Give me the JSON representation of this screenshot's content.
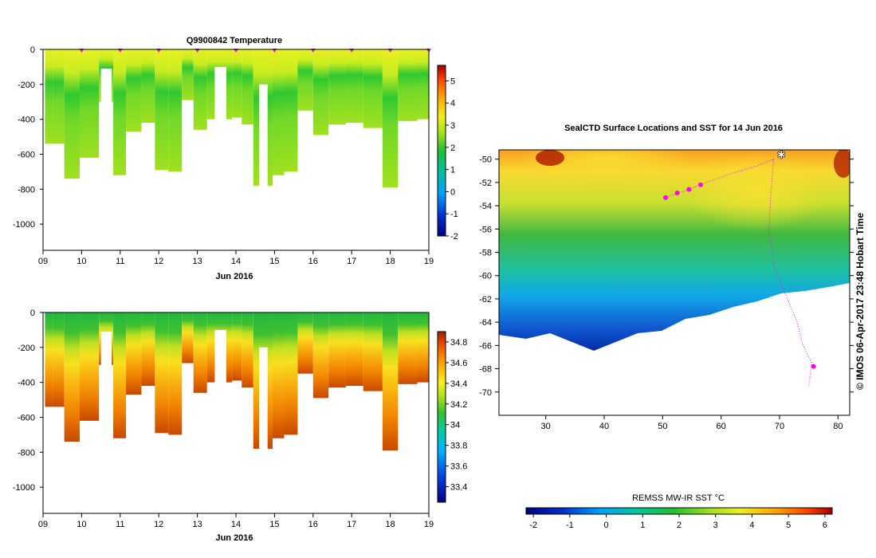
{
  "chart_data": [
    {
      "type": "heatmap",
      "title": "Q9900842  Temperature",
      "xlabel": "Jun 2016",
      "ylabel": "",
      "xlim": [
        9,
        19
      ],
      "ylim": [
        -1150,
        0
      ],
      "xticks": [
        "09",
        "10",
        "11",
        "12",
        "13",
        "14",
        "15",
        "16",
        "17",
        "18",
        "19"
      ],
      "yticks": [
        "0",
        "-200",
        "-400",
        "-600",
        "-800",
        "-1000"
      ],
      "colorbar": {
        "ticks": [
          "5",
          "4",
          "3",
          "2",
          "1",
          "0",
          "-1",
          "-2"
        ],
        "min": -2,
        "max": 5.7
      },
      "profile_markers_day": [
        10,
        11,
        12,
        13,
        14,
        15,
        16,
        17,
        18,
        19
      ],
      "profiles": [
        {
          "day": 9.25,
          "max_depth": 540,
          "surface": 2.9,
          "deep": 2.5
        },
        {
          "day": 9.55,
          "max_depth": 740,
          "surface": 3.1,
          "deep": 2.2
        },
        {
          "day": 9.95,
          "max_depth": 620,
          "surface": 2.9,
          "deep": 2.1
        },
        {
          "day": 10.45,
          "max_depth": 300,
          "surface": 3.0,
          "deep": 2.3
        },
        {
          "day": 10.82,
          "max_depth": 720,
          "surface": 2.9,
          "deep": 2.4
        },
        {
          "day": 11.15,
          "max_depth": 470,
          "surface": 2.8,
          "deep": 2.1
        },
        {
          "day": 11.55,
          "max_depth": 420,
          "surface": 2.9,
          "deep": 2.2
        },
        {
          "day": 11.9,
          "max_depth": 690,
          "surface": 3.0,
          "deep": 2.4
        },
        {
          "day": 12.25,
          "max_depth": 700,
          "surface": 2.8,
          "deep": 2.3
        },
        {
          "day": 12.6,
          "max_depth": 290,
          "surface": 3.0,
          "deep": 2.4
        },
        {
          "day": 12.9,
          "max_depth": 460,
          "surface": 2.9,
          "deep": 2.3
        },
        {
          "day": 13.25,
          "max_depth": 400,
          "surface": 3.0,
          "deep": 2.2
        },
        {
          "day": 13.9,
          "max_depth": 390,
          "surface": 2.9,
          "deep": 2.1
        },
        {
          "day": 14.15,
          "max_depth": 430,
          "surface": 2.8,
          "deep": 2.1
        },
        {
          "day": 14.45,
          "max_depth": 780,
          "surface": 2.7,
          "deep": 2.5
        },
        {
          "day": 14.95,
          "max_depth": 720,
          "surface": 2.6,
          "deep": 2.4
        },
        {
          "day": 15.25,
          "max_depth": 700,
          "surface": 2.7,
          "deep": 2.3
        },
        {
          "day": 15.6,
          "max_depth": 350,
          "surface": 2.8,
          "deep": 2.0
        },
        {
          "day": 16.0,
          "max_depth": 490,
          "surface": 2.6,
          "deep": 2.0
        },
        {
          "day": 16.4,
          "max_depth": 430,
          "surface": 2.7,
          "deep": 2.0
        },
        {
          "day": 16.85,
          "max_depth": 420,
          "surface": 2.7,
          "deep": 2.0
        },
        {
          "day": 17.3,
          "max_depth": 450,
          "surface": 2.7,
          "deep": 2.0
        },
        {
          "day": 17.8,
          "max_depth": 790,
          "surface": 2.5,
          "deep": 2.4
        },
        {
          "day": 18.2,
          "max_depth": 410,
          "surface": 2.6,
          "deep": 2.0
        },
        {
          "day": 18.7,
          "max_depth": 400,
          "surface": 2.2,
          "deep": 1.8
        }
      ],
      "gaps": [
        {
          "from": 10.5,
          "to": 10.78,
          "max_depth": 110
        },
        {
          "from": 13.45,
          "to": 13.75,
          "max_depth": 100
        },
        {
          "from": 14.6,
          "to": 14.82,
          "max_depth": 200
        }
      ]
    },
    {
      "type": "heatmap",
      "title": "",
      "xlabel": "Jun 2016",
      "ylabel": "",
      "xlim": [
        9,
        19
      ],
      "ylim": [
        -1150,
        0
      ],
      "xticks": [
        "09",
        "10",
        "11",
        "12",
        "13",
        "14",
        "15",
        "16",
        "17",
        "18",
        "19"
      ],
      "yticks": [
        "0",
        "-200",
        "-400",
        "-600",
        "-800",
        "-1000"
      ],
      "colorbar": {
        "ticks": [
          "34.8",
          "34.6",
          "34.4",
          "34.2",
          "34",
          "33.8",
          "33.6",
          "33.4"
        ],
        "min": 33.25,
        "max": 34.9
      }
    },
    {
      "type": "heatmap",
      "title": "SealCTD Surface Locations and SST for 14 Jun 2016",
      "xlabel": "",
      "ylabel": "",
      "xlim": [
        22,
        82
      ],
      "ylim": [
        -72,
        -49.2
      ],
      "xticks": [
        "30",
        "40",
        "50",
        "60",
        "70",
        "80"
      ],
      "yticks": [
        "-50",
        "-52",
        "-54",
        "-56",
        "-58",
        "-60",
        "-62",
        "-64",
        "-66",
        "-68",
        "-70"
      ],
      "colorbar": {
        "label": "REMSS MW-IR SST °C",
        "ticks": [
          "-2",
          "-1",
          "0",
          "1",
          "2",
          "3",
          "4",
          "5",
          "6"
        ],
        "min": -2.2,
        "max": 6.2
      },
      "seal_track": [
        {
          "lon": 50.5,
          "lat": -53.3
        },
        {
          "lon": 52,
          "lat": -53.0
        },
        {
          "lon": 54,
          "lat": -52.7
        },
        {
          "lon": 56,
          "lat": -52.3
        },
        {
          "lon": 58,
          "lat": -51.9
        },
        {
          "lon": 62,
          "lat": -51.2
        },
        {
          "lon": 66,
          "lat": -50.6
        },
        {
          "lon": 69,
          "lat": -50.0
        },
        {
          "lon": 68.5,
          "lat": -53
        },
        {
          "lon": 68.2,
          "lat": -56
        },
        {
          "lon": 69,
          "lat": -59
        },
        {
          "lon": 70.5,
          "lat": -61
        },
        {
          "lon": 73,
          "lat": -64
        },
        {
          "lon": 74,
          "lat": -66
        },
        {
          "lon": 75.5,
          "lat": -67.5
        },
        {
          "lon": 75,
          "lat": -69.5
        }
      ],
      "seal_positions": [
        {
          "lon": 50.5,
          "lat": -53.3
        },
        {
          "lon": 52.5,
          "lat": -52.9
        },
        {
          "lon": 54.5,
          "lat": -52.6
        },
        {
          "lon": 56.5,
          "lat": -52.2
        },
        {
          "lon": 75.8,
          "lat": -67.8
        }
      ],
      "current_position": {
        "lon": 70.3,
        "lat": -49.6
      }
    }
  ],
  "credit": "© IMOS 06-Apr-2017 23:48 Hobart Time"
}
